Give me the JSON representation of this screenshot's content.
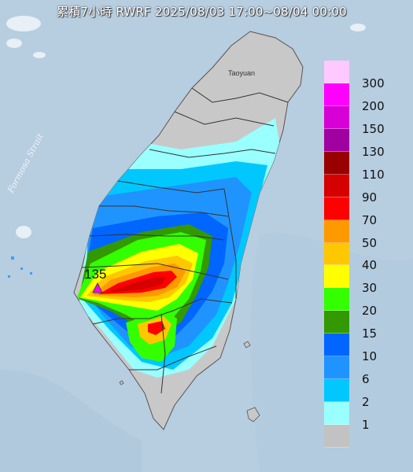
{
  "title": "累積7小時 RWRF 2025/08/03 17:00~08/04 00:00",
  "labels": {
    "strait": "Formosa Strait",
    "city": "Taoyuan",
    "max_value": "135",
    "max_marker": "triangle-marker"
  },
  "legend": {
    "levels": [
      "300",
      "200",
      "150",
      "130",
      "110",
      "90",
      "70",
      "50",
      "40",
      "30",
      "20",
      "15",
      "10",
      "6",
      "2",
      "1"
    ],
    "colors": [
      "#ffc8ff",
      "#ff00ff",
      "#d600d6",
      "#a000a0",
      "#990000",
      "#d60000",
      "#ff0000",
      "#ff9900",
      "#ffc700",
      "#ffff00",
      "#33ff00",
      "#339900",
      "#0066ff",
      "#1f94ff",
      "#00c8ff",
      "#99ffff",
      "#c2c2c2"
    ]
  },
  "colors": {
    "sea": "#b9cfe0",
    "land_gray": "#c8c8c8",
    "title_text": "#ffffff"
  }
}
